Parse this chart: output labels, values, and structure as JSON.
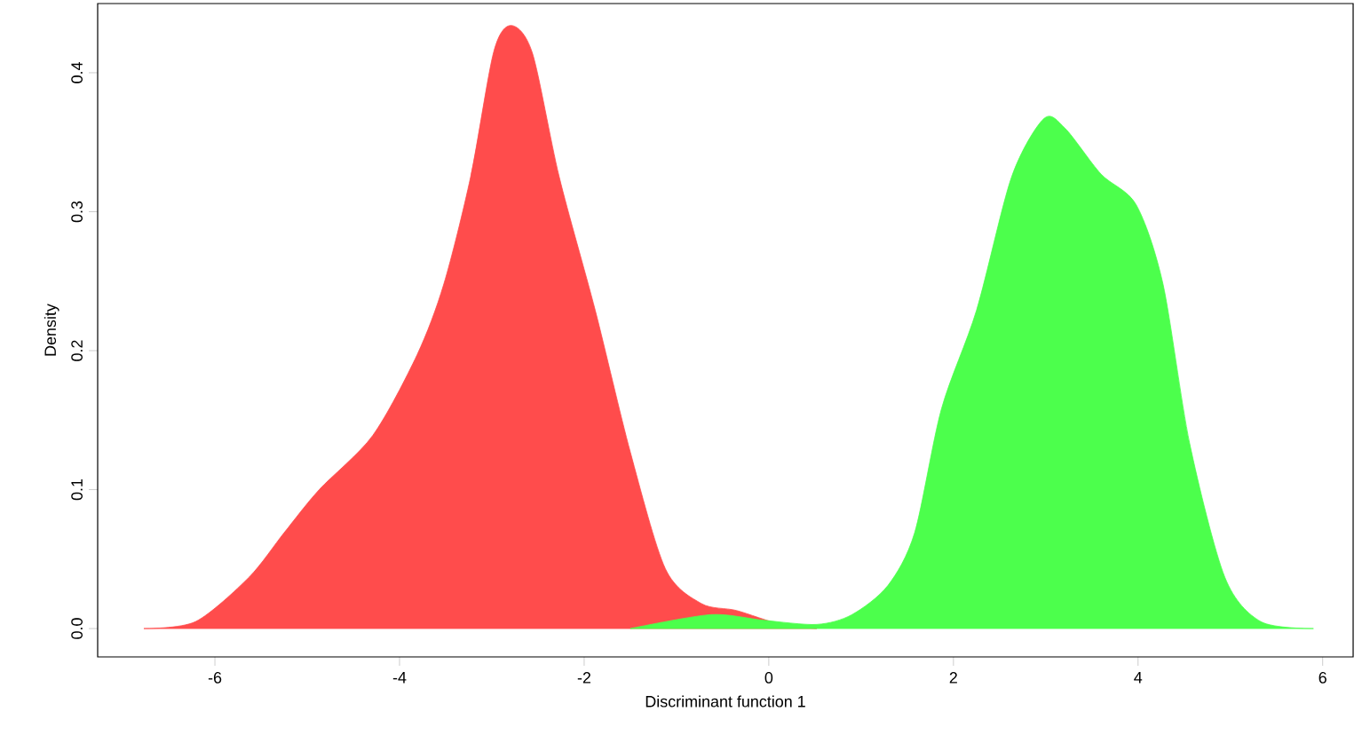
{
  "chart_data": {
    "type": "area",
    "xlabel": "Discriminant function 1",
    "ylabel": "Density",
    "xlim": [
      -7.27,
      6.33
    ],
    "ylim": [
      -0.0204,
      0.4498
    ],
    "xticks": [
      -6,
      -4,
      -2,
      0,
      2,
      4,
      6
    ],
    "yticks": [
      {
        "value": 0,
        "label": "0.0"
      },
      0.1,
      0.2,
      0.3,
      0.4
    ],
    "grid": false,
    "series": [
      {
        "color": "#ff4c4c",
        "x": [
          -6.77,
          -6.21,
          -5.63,
          -5.25,
          -4.87,
          -4.29,
          -3.81,
          -3.52,
          -3.23,
          -2.98,
          -2.79,
          -2.56,
          -2.27,
          -1.88,
          -1.5,
          -1.12,
          -0.73,
          -0.35,
          0.13,
          0.52
        ],
        "values": [
          0,
          0.005,
          0.037,
          0.069,
          0.1,
          0.139,
          0.197,
          0.248,
          0.325,
          0.415,
          0.434,
          0.414,
          0.325,
          0.229,
          0.127,
          0.043,
          0.018,
          0.013,
          0.003,
          0
        ]
      },
      {
        "color": "#4cff4c",
        "x": [
          -1.5,
          -0.63,
          -0.06,
          0.52,
          0.9,
          1.29,
          1.58,
          1.87,
          2.25,
          2.63,
          2.98,
          3.21,
          3.6,
          3.98,
          4.27,
          4.56,
          4.94,
          5.33,
          5.9
        ],
        "values": [
          0,
          0.01,
          0.006,
          0.003,
          0.01,
          0.031,
          0.069,
          0.158,
          0.229,
          0.325,
          0.367,
          0.36,
          0.327,
          0.305,
          0.248,
          0.133,
          0.037,
          0.005,
          0
        ]
      }
    ]
  }
}
